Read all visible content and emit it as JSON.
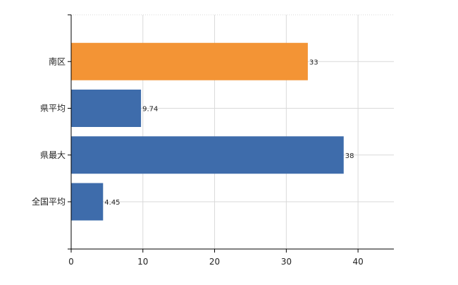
{
  "chart_data": {
    "type": "bar",
    "orientation": "horizontal",
    "categories": [
      "南区",
      "県平均",
      "県最大",
      "全国平均"
    ],
    "values": [
      33,
      9.74,
      38,
      4.45
    ],
    "data_labels": [
      "33",
      "9.74",
      "38",
      "4.45"
    ],
    "bar_colors": [
      "#F39435",
      "#3E6CAB",
      "#3E6CAB",
      "#3E6CAB"
    ],
    "title": "",
    "xlabel": "",
    "ylabel": "",
    "xlim": [
      0,
      45
    ],
    "x_ticks": [
      0,
      10,
      20,
      30,
      40
    ],
    "grid": true,
    "grid_color": "#d9d9d9",
    "legend": "none"
  }
}
